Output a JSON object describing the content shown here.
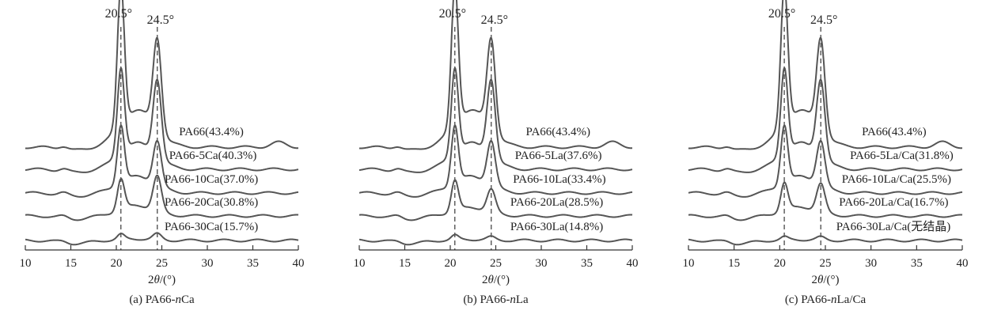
{
  "chart_data": [
    {
      "type": "line",
      "caption": "(a) PA66-nCa",
      "caption_prefix": "(a) PA66-",
      "caption_italic": "n",
      "caption_suffix": "Ca",
      "xlabel_base": "2",
      "xlabel_italic": "θ",
      "xlabel_suffix": "/(°)",
      "xlim": [
        10,
        40
      ],
      "xticks": [
        10,
        15,
        20,
        25,
        30,
        35,
        40
      ],
      "peaks": [
        {
          "x": 20.5,
          "label": "20.5°"
        },
        {
          "x": 24.5,
          "label": "24.5°"
        }
      ],
      "series": [
        {
          "name": "PA66(43.4%)",
          "h1": 1.0,
          "h2": 0.66,
          "label_x": 26.9
        },
        {
          "name": "PA66-5Ca(40.3%)",
          "h1": 0.62,
          "h2": 0.56,
          "label_x": 25.8
        },
        {
          "name": "PA66-10Ca(37.0%)",
          "h1": 0.42,
          "h2": 0.32,
          "label_x": 25.3
        },
        {
          "name": "PA66-20Ca(30.8%)",
          "h1": 0.22,
          "h2": 0.25,
          "label_x": 25.3
        },
        {
          "name": "PA66-30Ca(15.7%)",
          "h1": 0.035,
          "h2": 0.04,
          "label_x": 25.3
        }
      ]
    },
    {
      "type": "line",
      "caption": "(b) PA66-nLa",
      "caption_prefix": "(b) PA66-",
      "caption_italic": "n",
      "caption_suffix": "La",
      "xlabel_base": "2",
      "xlabel_italic": "θ",
      "xlabel_suffix": "/(°)",
      "xlim": [
        10,
        40
      ],
      "xticks": [
        10,
        15,
        20,
        25,
        30,
        35,
        40
      ],
      "peaks": [
        {
          "x": 20.5,
          "label": "20.5°"
        },
        {
          "x": 24.5,
          "label": "24.5°"
        }
      ],
      "series": [
        {
          "name": "PA66(43.4%)",
          "h1": 1.0,
          "h2": 0.66,
          "label_x": 28.3
        },
        {
          "name": "PA66-5La(37.6%)",
          "h1": 0.62,
          "h2": 0.56,
          "label_x": 27.1
        },
        {
          "name": "PA66-10La(33.4%)",
          "h1": 0.42,
          "h2": 0.32,
          "label_x": 26.9
        },
        {
          "name": "PA66-20La(28.5%)",
          "h1": 0.22,
          "h2": 0.16,
          "label_x": 26.6
        },
        {
          "name": "PA66-30La(14.8%)",
          "h1": 0.03,
          "h2": 0.02,
          "label_x": 26.6
        }
      ]
    },
    {
      "type": "line",
      "caption": "(c) PA66-nLa/Ca",
      "caption_prefix": "(c) PA66-",
      "caption_italic": "n",
      "caption_suffix": "La/Ca",
      "xlabel_base": "2",
      "xlabel_italic": "θ",
      "xlabel_suffix": "/(°)",
      "xlim": [
        10,
        40
      ],
      "xticks": [
        10,
        15,
        20,
        25,
        30,
        35,
        40
      ],
      "peaks": [
        {
          "x": 20.5,
          "label": "20.5°"
        },
        {
          "x": 24.5,
          "label": "24.5°"
        }
      ],
      "series": [
        {
          "name": "PA66(43.4%)",
          "h1": 1.0,
          "h2": 0.66,
          "label_x": 29.0
        },
        {
          "name": "PA66-5La/Ca(31.8%)",
          "h1": 0.62,
          "h2": 0.56,
          "label_x": 27.7
        },
        {
          "name": "PA66-10La/Ca(25.5%)",
          "h1": 0.42,
          "h2": 0.32,
          "label_x": 26.8
        },
        {
          "name": "PA66-20La/Ca(16.7%)",
          "h1": 0.2,
          "h2": 0.2,
          "label_x": 26.5
        },
        {
          "name": "PA66-30La/Ca(无结晶)",
          "h1": 0.02,
          "h2": 0.02,
          "label_x": 26.2
        }
      ]
    }
  ]
}
